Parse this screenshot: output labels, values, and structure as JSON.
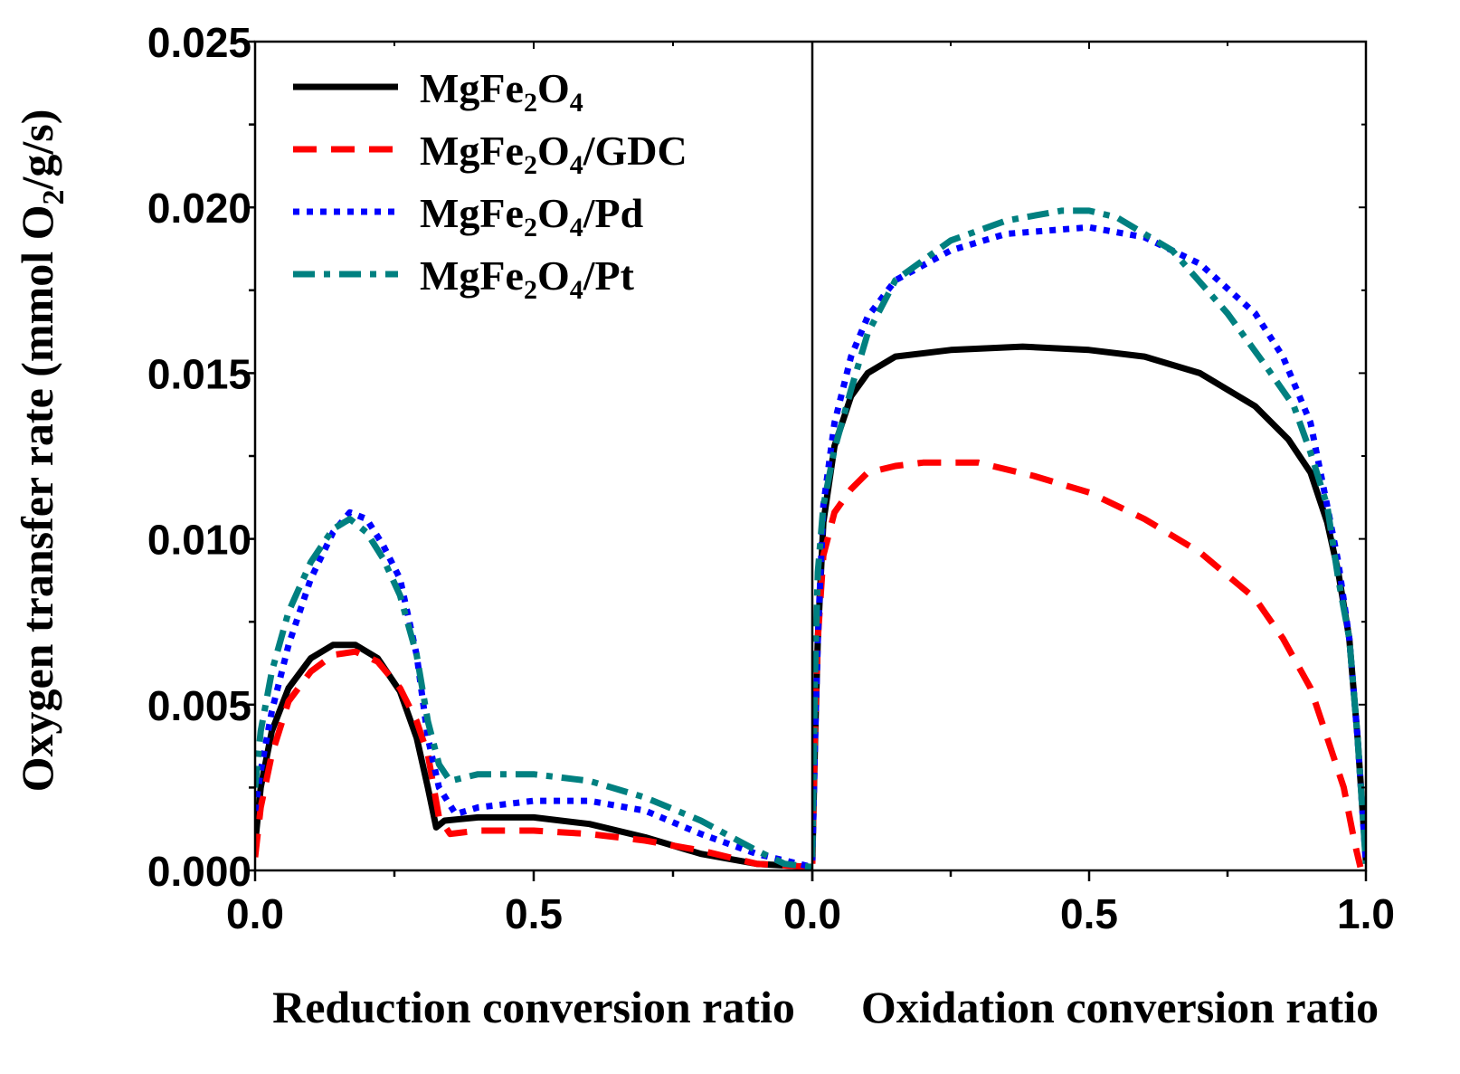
{
  "chart_data": {
    "type": "line",
    "ylabel": "Oxygen transfer rate (mmol O₂/g/s)",
    "ylabel_parts": [
      "Oxygen transfer rate (mmol O",
      "2",
      "/g/s)"
    ],
    "ylim": [
      0,
      0.025
    ],
    "y_ticks": [
      "0.000",
      "0.005",
      "0.010",
      "0.015",
      "0.020",
      "0.025"
    ],
    "y_tick_values": [
      0,
      0.005,
      0.01,
      0.015,
      0.02,
      0.025
    ],
    "grid": false,
    "legend_position": "top-left",
    "panels": [
      {
        "xlabel": "Reduction conversion ratio",
        "xlim": [
          0,
          1
        ],
        "x_tick_labels": [
          "0.0",
          "0.5"
        ],
        "x_tick_values": [
          0,
          0.5
        ]
      },
      {
        "xlabel": "Oxidation conversion ratio",
        "xlim": [
          0,
          1
        ],
        "x_tick_labels": [
          "0.0",
          "0.5",
          "1.0"
        ],
        "x_tick_values": [
          0,
          0.5,
          1.0
        ]
      }
    ],
    "series": [
      {
        "name": "MgFe2O4",
        "legend_parts": [
          "MgFe",
          "2",
          "O",
          "4",
          ""
        ],
        "color": "#000000",
        "dash": "solid",
        "reduction": [
          [
            0,
            0.0008
          ],
          [
            0.01,
            0.0025
          ],
          [
            0.03,
            0.0042
          ],
          [
            0.06,
            0.0055
          ],
          [
            0.1,
            0.0064
          ],
          [
            0.14,
            0.0068
          ],
          [
            0.18,
            0.0068
          ],
          [
            0.22,
            0.0064
          ],
          [
            0.26,
            0.0054
          ],
          [
            0.29,
            0.004
          ],
          [
            0.31,
            0.0025
          ],
          [
            0.325,
            0.0013
          ],
          [
            0.34,
            0.0015
          ],
          [
            0.4,
            0.0016
          ],
          [
            0.5,
            0.0016
          ],
          [
            0.6,
            0.0014
          ],
          [
            0.7,
            0.001
          ],
          [
            0.8,
            0.0005
          ],
          [
            0.9,
            0.0002
          ],
          [
            1.0,
            0.0001
          ]
        ],
        "oxidation": [
          [
            0,
            0.0003
          ],
          [
            0.005,
            0.004
          ],
          [
            0.01,
            0.007
          ],
          [
            0.02,
            0.0105
          ],
          [
            0.04,
            0.0128
          ],
          [
            0.07,
            0.0143
          ],
          [
            0.1,
            0.015
          ],
          [
            0.15,
            0.0155
          ],
          [
            0.25,
            0.0157
          ],
          [
            0.38,
            0.0158
          ],
          [
            0.5,
            0.0157
          ],
          [
            0.6,
            0.0155
          ],
          [
            0.7,
            0.015
          ],
          [
            0.8,
            0.014
          ],
          [
            0.86,
            0.013
          ],
          [
            0.9,
            0.012
          ],
          [
            0.93,
            0.0105
          ],
          [
            0.95,
            0.009
          ],
          [
            0.97,
            0.007
          ],
          [
            0.985,
            0.004
          ],
          [
            1.0,
            0.0003
          ]
        ]
      },
      {
        "name": "MgFe2O4/GDC",
        "legend_parts": [
          "MgFe",
          "2",
          "O",
          "4",
          "/GDC"
        ],
        "color": "#ff0000",
        "dash": "long-dash",
        "reduction": [
          [
            0,
            0.0004
          ],
          [
            0.01,
            0.0019
          ],
          [
            0.03,
            0.0035
          ],
          [
            0.06,
            0.0051
          ],
          [
            0.1,
            0.006
          ],
          [
            0.14,
            0.0065
          ],
          [
            0.18,
            0.0066
          ],
          [
            0.22,
            0.0063
          ],
          [
            0.26,
            0.0055
          ],
          [
            0.29,
            0.0045
          ],
          [
            0.31,
            0.0035
          ],
          [
            0.33,
            0.0016
          ],
          [
            0.35,
            0.0011
          ],
          [
            0.4,
            0.0012
          ],
          [
            0.5,
            0.0012
          ],
          [
            0.6,
            0.0011
          ],
          [
            0.7,
            0.0009
          ],
          [
            0.8,
            0.0006
          ],
          [
            0.9,
            0.0002
          ],
          [
            1.0,
            0.0001
          ]
        ],
        "oxidation": [
          [
            0,
            0.0002
          ],
          [
            0.005,
            0.0045
          ],
          [
            0.01,
            0.007
          ],
          [
            0.02,
            0.0095
          ],
          [
            0.04,
            0.0108
          ],
          [
            0.07,
            0.0115
          ],
          [
            0.1,
            0.012
          ],
          [
            0.15,
            0.0122
          ],
          [
            0.2,
            0.0123
          ],
          [
            0.3,
            0.0123
          ],
          [
            0.4,
            0.0119
          ],
          [
            0.5,
            0.0114
          ],
          [
            0.6,
            0.0106
          ],
          [
            0.7,
            0.0096
          ],
          [
            0.8,
            0.0082
          ],
          [
            0.85,
            0.007
          ],
          [
            0.9,
            0.0055
          ],
          [
            0.93,
            0.004
          ],
          [
            0.96,
            0.0025
          ],
          [
            0.98,
            0.0008
          ],
          [
            0.99,
            0.0001
          ]
        ]
      },
      {
        "name": "MgFe2O4/Pd",
        "legend_parts": [
          "MgFe",
          "2",
          "O",
          "4",
          "/Pd"
        ],
        "color": "#0000ff",
        "dash": "dot",
        "reduction": [
          [
            0,
            0.0018
          ],
          [
            0.01,
            0.003
          ],
          [
            0.03,
            0.0048
          ],
          [
            0.06,
            0.0068
          ],
          [
            0.1,
            0.0088
          ],
          [
            0.14,
            0.0102
          ],
          [
            0.17,
            0.0108
          ],
          [
            0.2,
            0.0106
          ],
          [
            0.23,
            0.0098
          ],
          [
            0.26,
            0.0088
          ],
          [
            0.29,
            0.0065
          ],
          [
            0.31,
            0.004
          ],
          [
            0.33,
            0.0025
          ],
          [
            0.36,
            0.0017
          ],
          [
            0.4,
            0.0019
          ],
          [
            0.5,
            0.0021
          ],
          [
            0.6,
            0.0021
          ],
          [
            0.7,
            0.0018
          ],
          [
            0.8,
            0.0011
          ],
          [
            0.9,
            0.0005
          ],
          [
            0.95,
            0.0003
          ],
          [
            1.0,
            0.0001
          ]
        ],
        "oxidation": [
          [
            0,
            0.0003
          ],
          [
            0.005,
            0.004
          ],
          [
            0.01,
            0.007
          ],
          [
            0.02,
            0.011
          ],
          [
            0.04,
            0.0135
          ],
          [
            0.07,
            0.0155
          ],
          [
            0.1,
            0.0167
          ],
          [
            0.15,
            0.0178
          ],
          [
            0.25,
            0.0187
          ],
          [
            0.35,
            0.0192
          ],
          [
            0.5,
            0.0194
          ],
          [
            0.6,
            0.0191
          ],
          [
            0.7,
            0.0183
          ],
          [
            0.8,
            0.0168
          ],
          [
            0.85,
            0.0155
          ],
          [
            0.9,
            0.0135
          ],
          [
            0.93,
            0.011
          ],
          [
            0.95,
            0.0093
          ],
          [
            0.97,
            0.007
          ],
          [
            0.985,
            0.004
          ],
          [
            1.0,
            0.0002
          ]
        ]
      },
      {
        "name": "MgFe2O4/Pt",
        "legend_parts": [
          "MgFe",
          "2",
          "O",
          "4",
          "/Pt"
        ],
        "color": "#008080",
        "dash": "dash-dot",
        "reduction": [
          [
            0,
            0.0025
          ],
          [
            0.01,
            0.0042
          ],
          [
            0.03,
            0.006
          ],
          [
            0.06,
            0.0078
          ],
          [
            0.1,
            0.0093
          ],
          [
            0.14,
            0.0103
          ],
          [
            0.17,
            0.0106
          ],
          [
            0.2,
            0.0102
          ],
          [
            0.23,
            0.0094
          ],
          [
            0.26,
            0.0083
          ],
          [
            0.29,
            0.0065
          ],
          [
            0.31,
            0.0045
          ],
          [
            0.33,
            0.0032
          ],
          [
            0.35,
            0.0027
          ],
          [
            0.4,
            0.0029
          ],
          [
            0.5,
            0.0029
          ],
          [
            0.6,
            0.0027
          ],
          [
            0.7,
            0.0022
          ],
          [
            0.8,
            0.0015
          ],
          [
            0.9,
            0.0006
          ],
          [
            0.95,
            0.0002
          ],
          [
            1.0,
            0.0001
          ]
        ],
        "oxidation": [
          [
            0,
            0.0004
          ],
          [
            0.005,
            0.006
          ],
          [
            0.01,
            0.009
          ],
          [
            0.02,
            0.011
          ],
          [
            0.04,
            0.0127
          ],
          [
            0.07,
            0.0145
          ],
          [
            0.1,
            0.0162
          ],
          [
            0.15,
            0.0178
          ],
          [
            0.25,
            0.019
          ],
          [
            0.35,
            0.0196
          ],
          [
            0.45,
            0.0199
          ],
          [
            0.5,
            0.0199
          ],
          [
            0.55,
            0.0197
          ],
          [
            0.65,
            0.0187
          ],
          [
            0.75,
            0.0168
          ],
          [
            0.82,
            0.0152
          ],
          [
            0.87,
            0.014
          ],
          [
            0.9,
            0.0126
          ],
          [
            0.93,
            0.011
          ],
          [
            0.95,
            0.0088
          ],
          [
            0.97,
            0.007
          ],
          [
            0.985,
            0.004
          ],
          [
            1.0,
            0.0002
          ]
        ]
      }
    ]
  }
}
